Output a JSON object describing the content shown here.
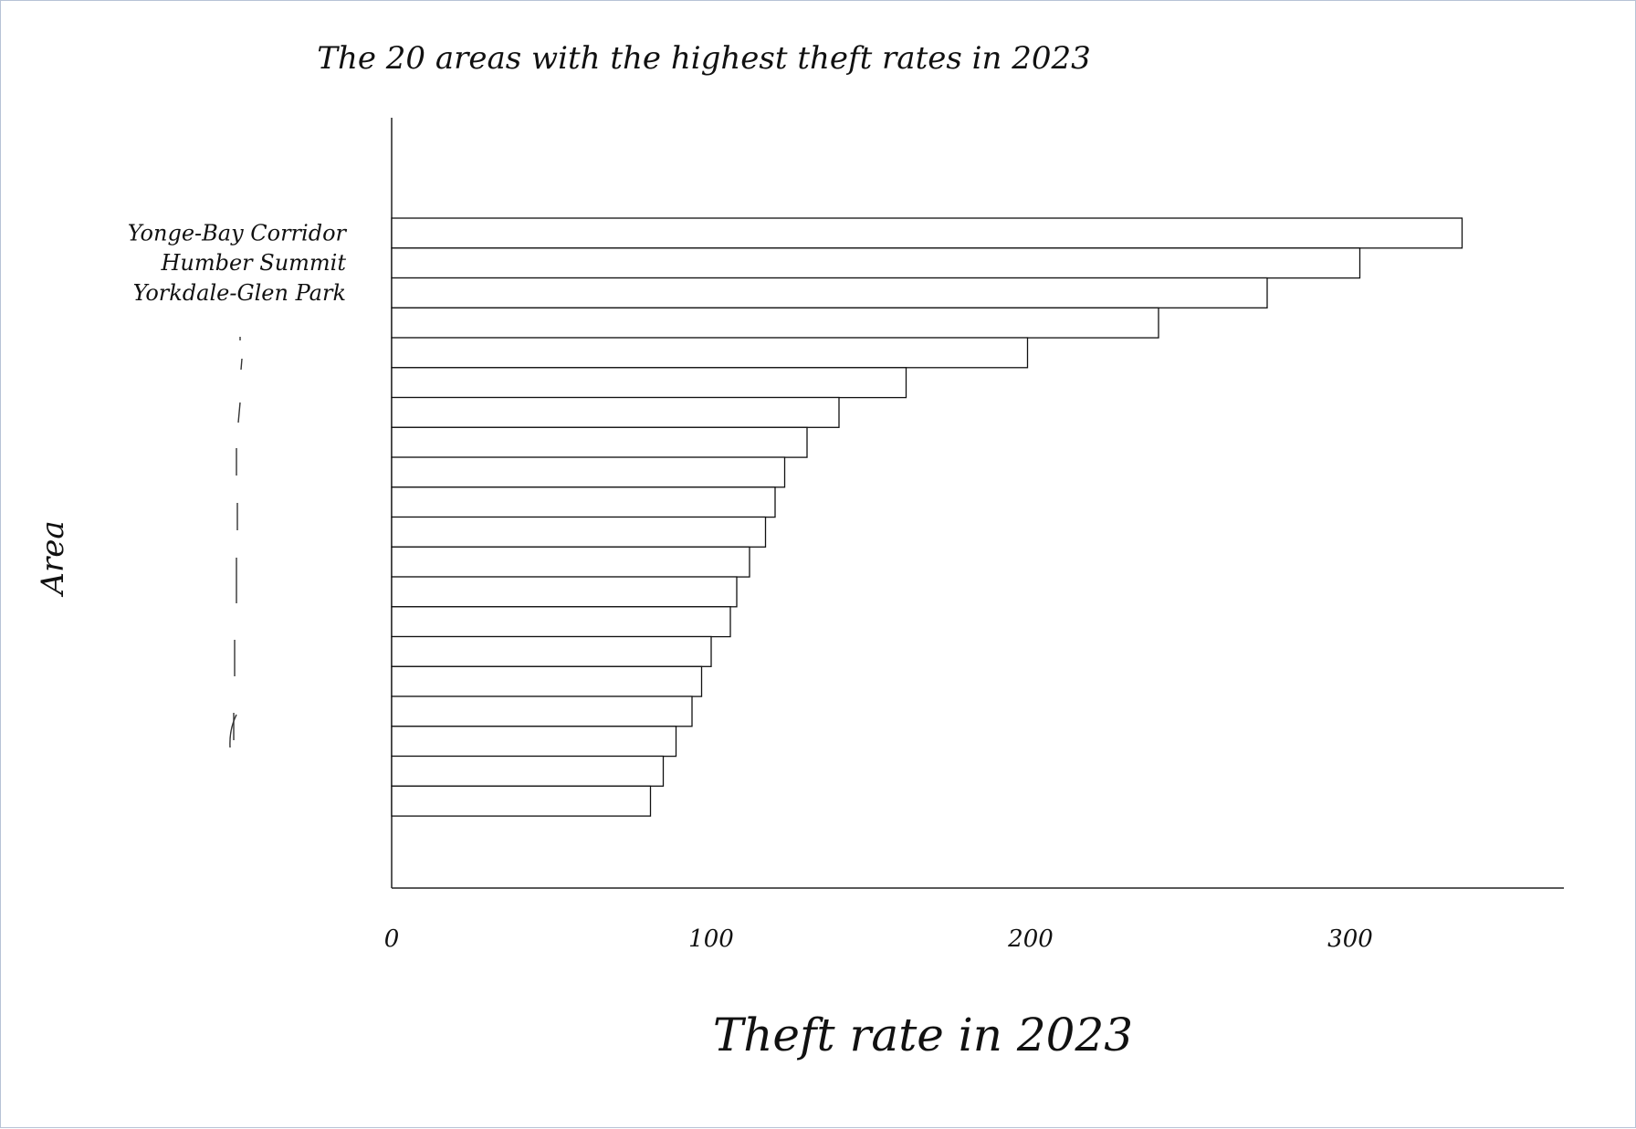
{
  "chart_data": {
    "type": "bar",
    "orientation": "horizontal",
    "title": "The 20 areas with the highest theft rates in 2023",
    "xlabel": "Theft rate in 2023",
    "ylabel": "Area",
    "xlim": [
      0,
      380
    ],
    "xticks": [
      "0",
      "100",
      "200",
      "300"
    ],
    "xtick_values": [
      0,
      100,
      200,
      300
    ],
    "categories": [
      "Yonge-Bay Corridor",
      "Humber Summit",
      "Yorkdale-Glen Park",
      "",
      "",
      "",
      "",
      "",
      "",
      "",
      "",
      "",
      "",
      "",
      "",
      "",
      "",
      "",
      "",
      ""
    ],
    "values": [
      335,
      303,
      274,
      240,
      199,
      161,
      140,
      130,
      123,
      120,
      117,
      112,
      108,
      106,
      100,
      97,
      94,
      89,
      85,
      81
    ],
    "bar_fill": "#ffffff",
    "bar_stroke": "#111111",
    "grid": false,
    "legend": "none"
  }
}
